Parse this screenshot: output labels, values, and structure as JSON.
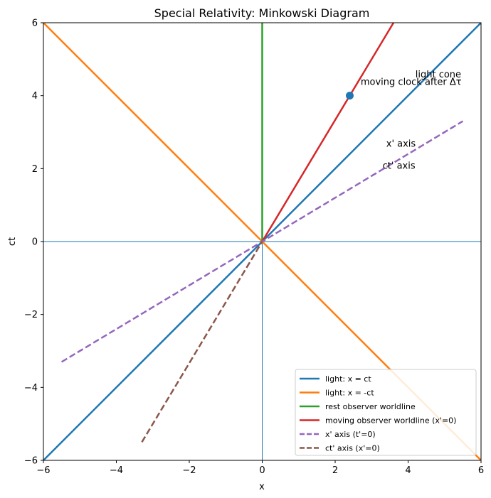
{
  "chart_data": {
    "type": "line",
    "title": "Special Relativity: Minkowski Diagram",
    "xlabel": "x",
    "ylabel": "ct",
    "xlim": [
      -6,
      6
    ],
    "ylim": [
      -6,
      6
    ],
    "xticks": [
      -6,
      -4,
      -2,
      0,
      2,
      4,
      6
    ],
    "yticks": [
      -6,
      -4,
      -2,
      0,
      2,
      4,
      6
    ],
    "xtick_labels": [
      "−6",
      "−4",
      "−2",
      "0",
      "2",
      "4",
      "6"
    ],
    "ytick_labels": [
      "−6",
      "−4",
      "−2",
      "0",
      "2",
      "4",
      "6"
    ],
    "grid": false,
    "reference_lines": [
      {
        "orientation": "horizontal",
        "value": 0,
        "color": "#1f77b4"
      },
      {
        "orientation": "vertical",
        "value": 0,
        "color": "#1f77b4"
      }
    ],
    "series": [
      {
        "name": "light: x = ct",
        "color": "#1f77b4",
        "style": "solid",
        "x": [
          -6,
          6
        ],
        "y": [
          -6,
          6
        ]
      },
      {
        "name": "light: x = -ct",
        "color": "#ff7f0e",
        "style": "solid",
        "x": [
          -6,
          6
        ],
        "y": [
          6,
          -6
        ]
      },
      {
        "name": "rest observer worldline",
        "color": "#2ca02c",
        "style": "solid",
        "x": [
          0,
          0
        ],
        "y": [
          0,
          6
        ]
      },
      {
        "name": "moving observer worldline (x'=0)",
        "color": "#d62728",
        "style": "solid",
        "x": [
          0,
          3.6
        ],
        "y": [
          0,
          6
        ]
      },
      {
        "name": "x' axis (t'=0)",
        "color": "#9467bd",
        "style": "dashed",
        "x": [
          -5.5,
          5.5
        ],
        "y": [
          -3.3,
          3.3
        ]
      },
      {
        "name": "ct' axis (x'=0)",
        "color": "#8c564b",
        "style": "dashed",
        "x": [
          -3.3,
          0
        ],
        "y": [
          -5.5,
          0
        ]
      }
    ],
    "points": [
      {
        "label": "moving clock after Δτ",
        "x": 2.4,
        "y": 4,
        "color": "#1f77b4"
      }
    ],
    "annotations": [
      {
        "text": "light cone",
        "x": 4.2,
        "y": 4.5
      },
      {
        "text": "moving clock after Δτ",
        "x": 2.7,
        "y": 4.3
      },
      {
        "text": "x' axis",
        "x": 3.4,
        "y": 2.6
      },
      {
        "text": "ct' axis",
        "x": 3.3,
        "y": 2.0
      }
    ],
    "legend_position": "bottom-right"
  }
}
